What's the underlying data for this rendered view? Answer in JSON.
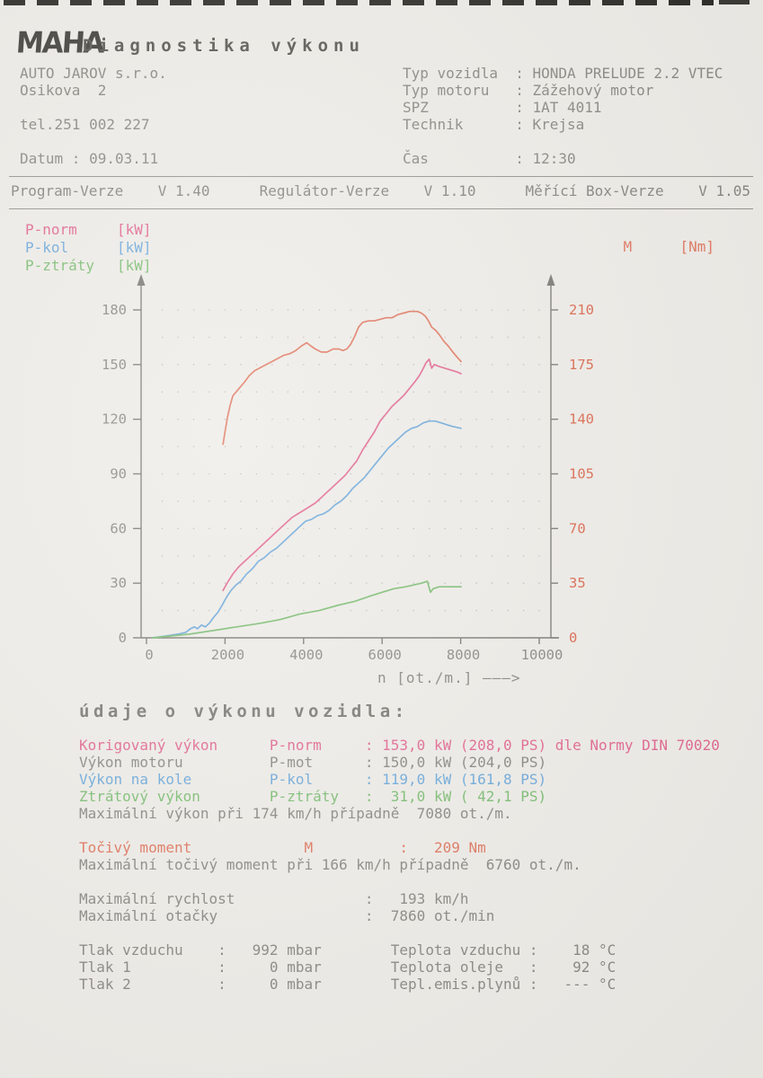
{
  "header": {
    "logo": "MAHA",
    "title": "Diagnostika výkonu"
  },
  "company": {
    "lines": [
      "AUTO JAROV s.r.o.",
      "Osikova  2",
      "",
      "tel.251 002 227",
      "",
      "Datum : 09.03.11"
    ]
  },
  "vehicle": {
    "lines": [
      "Typ vozidla  : HONDA PRELUDE 2.2 VTEC",
      "Typ motoru   : Zážehový motor",
      "SPZ          : 1AT 4011",
      "Technik      : Krejsa",
      "",
      "Čas          : 12:30"
    ]
  },
  "versions": {
    "items": [
      "Program-Verze    V 1.40",
      "Regulátor-Verze    V 1.10",
      "Měřící Box-Verze    V 1.05"
    ]
  },
  "legend": {
    "left": [
      {
        "label": "P-norm",
        "unit": "[kW]",
        "color": "pink"
      },
      {
        "label": "P-kol",
        "unit": "[kW]",
        "color": "blue"
      },
      {
        "label": "P-ztráty",
        "unit": "[kW]",
        "color": "green"
      }
    ],
    "right": {
      "label": "M",
      "unit": "[Nm]",
      "color": "salmon"
    }
  },
  "chart_data": {
    "type": "line",
    "x_label": "n [ot./m.] ———>",
    "x_range": [
      0,
      10000
    ],
    "x_ticks": [
      0,
      2000,
      4000,
      6000,
      8000,
      10000
    ],
    "y_left_unit": "kW",
    "y_left_range": [
      0,
      180
    ],
    "y_left_ticks": [
      0,
      30,
      60,
      90,
      120,
      150,
      180
    ],
    "y_right_unit": "Nm",
    "y_right_range": [
      0,
      210
    ],
    "y_right_ticks": [
      0,
      35,
      70,
      105,
      140,
      175,
      210
    ],
    "grid": "dotted",
    "legend_position": "top",
    "series": [
      {
        "name": "M",
        "unit": "Nm",
        "axis": "right",
        "color": "#de7159",
        "points": [
          [
            1950,
            124
          ],
          [
            2000,
            132
          ],
          [
            2060,
            141
          ],
          [
            2130,
            149
          ],
          [
            2200,
            155
          ],
          [
            2300,
            158
          ],
          [
            2400,
            161
          ],
          [
            2500,
            164
          ],
          [
            2620,
            168
          ],
          [
            2750,
            171
          ],
          [
            2900,
            173
          ],
          [
            3050,
            175
          ],
          [
            3200,
            177
          ],
          [
            3350,
            179
          ],
          [
            3500,
            181
          ],
          [
            3650,
            182
          ],
          [
            3800,
            184
          ],
          [
            3950,
            187
          ],
          [
            4080,
            189
          ],
          [
            4180,
            187
          ],
          [
            4300,
            185
          ],
          [
            4450,
            183
          ],
          [
            4600,
            183
          ],
          [
            4750,
            185
          ],
          [
            4900,
            185
          ],
          [
            5000,
            184
          ],
          [
            5100,
            185
          ],
          [
            5200,
            188
          ],
          [
            5300,
            193
          ],
          [
            5400,
            199
          ],
          [
            5500,
            202
          ],
          [
            5650,
            203
          ],
          [
            5800,
            203
          ],
          [
            5950,
            204
          ],
          [
            6100,
            205
          ],
          [
            6250,
            205
          ],
          [
            6400,
            207
          ],
          [
            6550,
            208
          ],
          [
            6700,
            209
          ],
          [
            6800,
            209
          ],
          [
            6900,
            209
          ],
          [
            7000,
            208
          ],
          [
            7100,
            206
          ],
          [
            7180,
            203
          ],
          [
            7260,
            199
          ],
          [
            7360,
            197
          ],
          [
            7460,
            194
          ],
          [
            7570,
            190
          ],
          [
            7680,
            187
          ],
          [
            7800,
            183
          ],
          [
            7900,
            180
          ],
          [
            8010,
            177
          ]
        ]
      },
      {
        "name": "P-norm",
        "unit": "kW",
        "axis": "left",
        "color": "#e0618c",
        "points": [
          [
            1950,
            26
          ],
          [
            2050,
            30
          ],
          [
            2200,
            35
          ],
          [
            2350,
            39
          ],
          [
            2500,
            42
          ],
          [
            2650,
            45
          ],
          [
            2800,
            48
          ],
          [
            2950,
            51
          ],
          [
            3100,
            54
          ],
          [
            3250,
            57
          ],
          [
            3400,
            60
          ],
          [
            3550,
            63
          ],
          [
            3700,
            66
          ],
          [
            3850,
            68
          ],
          [
            4000,
            70
          ],
          [
            4150,
            72
          ],
          [
            4300,
            74
          ],
          [
            4450,
            77
          ],
          [
            4600,
            80
          ],
          [
            4750,
            83
          ],
          [
            4900,
            86
          ],
          [
            5050,
            89
          ],
          [
            5200,
            93
          ],
          [
            5350,
            97
          ],
          [
            5500,
            103
          ],
          [
            5650,
            108
          ],
          [
            5800,
            113
          ],
          [
            5950,
            119
          ],
          [
            6100,
            123
          ],
          [
            6250,
            127
          ],
          [
            6400,
            130
          ],
          [
            6550,
            133
          ],
          [
            6700,
            137
          ],
          [
            6850,
            141
          ],
          [
            6950,
            144
          ],
          [
            7050,
            148
          ],
          [
            7120,
            151
          ],
          [
            7200,
            153
          ],
          [
            7260,
            148
          ],
          [
            7330,
            150
          ],
          [
            7450,
            149
          ],
          [
            7600,
            148
          ],
          [
            7750,
            147
          ],
          [
            7900,
            146
          ],
          [
            8010,
            145
          ]
        ]
      },
      {
        "name": "P-kol",
        "unit": "kW",
        "axis": "left",
        "color": "#68a5d9",
        "points": [
          [
            150,
            0
          ],
          [
            500,
            1
          ],
          [
            800,
            2
          ],
          [
            1000,
            3
          ],
          [
            1120,
            5
          ],
          [
            1220,
            6
          ],
          [
            1300,
            5
          ],
          [
            1400,
            7
          ],
          [
            1500,
            6
          ],
          [
            1600,
            8
          ],
          [
            1700,
            11
          ],
          [
            1820,
            14
          ],
          [
            1930,
            18
          ],
          [
            2030,
            22
          ],
          [
            2150,
            26
          ],
          [
            2280,
            29
          ],
          [
            2400,
            31
          ],
          [
            2550,
            35
          ],
          [
            2700,
            38
          ],
          [
            2850,
            42
          ],
          [
            3000,
            44
          ],
          [
            3150,
            47
          ],
          [
            3300,
            49
          ],
          [
            3450,
            52
          ],
          [
            3600,
            55
          ],
          [
            3750,
            58
          ],
          [
            3900,
            61
          ],
          [
            4050,
            64
          ],
          [
            4200,
            65
          ],
          [
            4350,
            67
          ],
          [
            4500,
            68
          ],
          [
            4650,
            70
          ],
          [
            4800,
            73
          ],
          [
            4950,
            75
          ],
          [
            5100,
            78
          ],
          [
            5250,
            82
          ],
          [
            5400,
            85
          ],
          [
            5550,
            88
          ],
          [
            5700,
            92
          ],
          [
            5850,
            96
          ],
          [
            6000,
            100
          ],
          [
            6150,
            104
          ],
          [
            6300,
            107
          ],
          [
            6450,
            110
          ],
          [
            6600,
            113
          ],
          [
            6750,
            115
          ],
          [
            6900,
            116
          ],
          [
            7050,
            118
          ],
          [
            7200,
            119
          ],
          [
            7350,
            119
          ],
          [
            7500,
            118
          ],
          [
            7650,
            117
          ],
          [
            7800,
            116
          ],
          [
            8010,
            115
          ]
        ]
      },
      {
        "name": "P-ztráty",
        "unit": "kW",
        "axis": "left",
        "color": "#76ba6c",
        "points": [
          [
            150,
            0
          ],
          [
            600,
            1
          ],
          [
            1100,
            2
          ],
          [
            1700,
            4
          ],
          [
            2300,
            6
          ],
          [
            2900,
            8
          ],
          [
            3400,
            10
          ],
          [
            3900,
            13
          ],
          [
            4400,
            15
          ],
          [
            4900,
            18
          ],
          [
            5300,
            20
          ],
          [
            5700,
            23
          ],
          [
            6000,
            25
          ],
          [
            6300,
            27
          ],
          [
            6600,
            28
          ],
          [
            6800,
            29
          ],
          [
            7000,
            30
          ],
          [
            7150,
            31
          ],
          [
            7230,
            25
          ],
          [
            7300,
            27
          ],
          [
            7450,
            28
          ],
          [
            7600,
            28
          ],
          [
            7800,
            28
          ],
          [
            8010,
            28
          ]
        ]
      }
    ]
  },
  "results": {
    "heading": "údaje o výkonu vozidla:",
    "rows": [
      {
        "text": "Korigovaný výkon      P-norm     : 153,0 kW (208,0 PS) dle Normy DIN 70020",
        "color": "pink"
      },
      {
        "text": "Výkon motoru          P-mot      : 150,0 kW (204,0 PS)",
        "color": "gray"
      },
      {
        "text": "Výkon na kole         P-kol      : 119,0 kW (161,8 PS)",
        "color": "blue"
      },
      {
        "text": "Ztrátový výkon        P-ztráty   :  31,0 kW ( 42,1 PS)",
        "color": "green"
      },
      {
        "text": "Maximální výkon při 174 km/h případně  7080 ot./m.",
        "color": "gray"
      },
      {
        "text": "",
        "color": "gray"
      },
      {
        "text": "Točivý moment             M          :   209 Nm",
        "color": "salmon"
      },
      {
        "text": "Maximální točivý moment při 166 km/h případně  6760 ot./m.",
        "color": "gray"
      },
      {
        "text": "",
        "color": "gray"
      },
      {
        "text": "Maximální rychlost               :   193 km/h",
        "color": "gray"
      },
      {
        "text": "Maximální otačky                 :  7860 ot./min",
        "color": "gray"
      },
      {
        "text": "",
        "color": "gray"
      },
      {
        "text": "Tlak vzduchu    :   992 mbar        Teplota vzduchu :    18 °C",
        "color": "gray"
      },
      {
        "text": "Tlak 1          :     0 mbar        Teplota oleje   :    92 °C",
        "color": "gray"
      },
      {
        "text": "Tlak 2          :     0 mbar        Tepl.emis.plynů :   --- °C",
        "color": "gray"
      }
    ]
  },
  "colors": {
    "paper": "#edebe6",
    "text_gray": "#85847e",
    "pink": "#e0618c",
    "blue": "#68a5d9",
    "green": "#76ba6c",
    "salmon": "#de7159",
    "right_axis_red": "#d96247",
    "axis": "#75746d",
    "grid_dot": "#b8b7b0"
  }
}
